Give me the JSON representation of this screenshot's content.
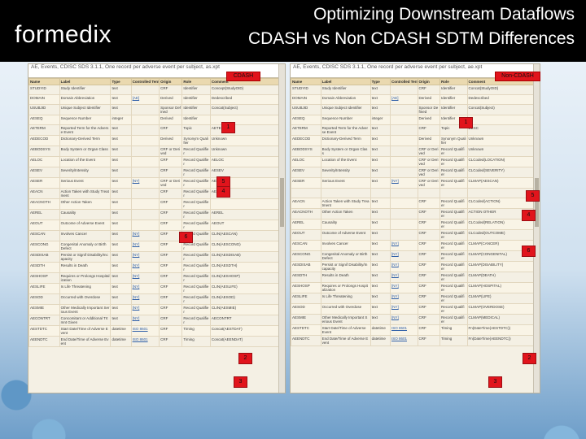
{
  "slide": {
    "logo": "formedix",
    "title_line1": "Optimizing Downstream Dataflows",
    "title_line2": "CDASH vs Non CDASH SDTM Differences"
  },
  "left_panel": {
    "label": "CDASH",
    "header_text": "AE, Events, CDISC SDS 3.1.1, One record per adverse event per subject, as.xpt",
    "columns": [
      "Name",
      "Label",
      "Type",
      "Controlled Terms",
      "Origin",
      "Role",
      "Comment"
    ],
    "rows": [
      [
        "STUDYID",
        "Study Identifier",
        "text",
        "",
        "CRF",
        "Identifier",
        "Concept(StudyOID)"
      ],
      [
        "DOMAIN",
        "Domain Abbreviation",
        "text",
        "[AE]",
        "Derived",
        "Identifier",
        "Dedescribed"
      ],
      [
        "USUBJID",
        "Unique Subject Identifier",
        "text",
        "",
        "Sponsor Defined",
        "Identifier",
        "Concat(Subject)"
      ],
      [
        "AESEQ",
        "Sequence Number",
        "integer",
        "",
        "Derived",
        "Identifier",
        ""
      ],
      [
        "AETERM",
        "Reported Term for the Adverse Event",
        "text",
        "",
        "CRF",
        "Topic",
        "AETERM"
      ],
      [
        "AEDECOD",
        "Dictionary-Derived Term",
        "text",
        "",
        "Derived",
        "Synonym Qualifier",
        "Unknown"
      ],
      [
        "AEBODSYS",
        "Body System or Organ Class",
        "text",
        "",
        "CRF or Derived",
        "Record Qualifier",
        "Unknown"
      ],
      [
        "AELOC",
        "Location of the Event",
        "text",
        "",
        "CRF",
        "Record Qualifier",
        "AELOC"
      ],
      [
        "AESEV",
        "Severity/Intensity",
        "text",
        "",
        "CRF",
        "Record Qualifier",
        "AESEV"
      ],
      [
        "AESER",
        "Serious Event",
        "text",
        "[NY]",
        "CRF or Derived",
        "Record Qualifier",
        "AESER"
      ],
      [
        "AEACN",
        "Action Taken with Study Treatment",
        "text",
        "",
        "CRF",
        "Record Qualifier",
        "AEACN"
      ],
      [
        "AEACNOTH",
        "Other Action Taken",
        "text",
        "",
        "CRF",
        "Record Qualifier",
        ""
      ],
      [
        "AEREL",
        "Causality",
        "text",
        "",
        "CRF",
        "Record Qualifier",
        "AEREL"
      ],
      [
        "AEOUT",
        "Outcome of Adverse Event",
        "text",
        "",
        "CRF",
        "Record Qualifier",
        "AEOUT"
      ],
      [
        "AESCAN",
        "Involves Cancer",
        "text",
        "[NY]",
        "CRF",
        "Record Qualifier",
        "CLIN(AESCAN)"
      ],
      [
        "AESCONG",
        "Congenital Anomaly or Birth Defect",
        "text",
        "[NY]",
        "CRF",
        "Record Qualifier",
        "CLIN(AESCONG)"
      ],
      [
        "AESDISAB",
        "Persist or Signif Disability/Incapacity",
        "text",
        "[NY]",
        "CRF",
        "Record Qualifier",
        "CLIN(AESDISAB)"
      ],
      [
        "AESDTH",
        "Results in Death",
        "text",
        "[NY]",
        "CRF",
        "Record Qualifier",
        "CLIN(AESDTH)"
      ],
      [
        "AESHOSP",
        "Requires or Prolongs Hospitalization",
        "text",
        "[NY]",
        "CRF",
        "Record Qualifier",
        "CLIN(AESHOSP)"
      ],
      [
        "AESLIFE",
        "Is Life Threatening",
        "text",
        "[NY]",
        "CRF",
        "Record Qualifier",
        "CLIN(AESLIFE)"
      ],
      [
        "AESOD",
        "Occurred with Overdose",
        "text",
        "[NY]",
        "CRF",
        "Record Qualifier",
        "CLIN(AESOD)"
      ],
      [
        "AESMIE",
        "Other Medically Important Serious Event",
        "text",
        "[NY]",
        "CRF",
        "Record Qualifier",
        "CLIN(AESMIE)"
      ],
      [
        "AECONTRT",
        "Concomitant or Additional Trtmnt Given",
        "text",
        "[NY]",
        "CRF",
        "Record Qualifier",
        "AECONTRT"
      ],
      [
        "AESTDTC",
        "Start Date/Time of Adverse Event",
        "datetime",
        "ISO 8601",
        "CRF",
        "Timing",
        "Concat(AESTDAT)"
      ],
      [
        "AEENDTC",
        "End Date/Time of Adverse Event",
        "datetime",
        "ISO 8601",
        "CRF",
        "Timing",
        "Concat(AEENDAT)"
      ]
    ]
  },
  "right_panel": {
    "label": "Non-CDASH",
    "header_text": "AE, Events, CDISC SDS 3.1.1, One record per adverse event per subject, ae.xpt",
    "columns": [
      "Name",
      "Label",
      "Type",
      "Controlled Terms",
      "Origin",
      "Role",
      "Comment"
    ],
    "rows": [
      [
        "STUDYID",
        "Study Identifier",
        "text",
        "",
        "CRF",
        "Identifier",
        "Concat(StudyOID)"
      ],
      [
        "DOMAIN",
        "Domain Abbreviation",
        "text",
        "[AE]",
        "Derived",
        "Identifier",
        "Dedescribed"
      ],
      [
        "USUBJID",
        "Unique Subject Identifier",
        "text",
        "",
        "Sponsor Defined",
        "Identifier",
        "Concat(Subject)"
      ],
      [
        "AESEQ",
        "Sequence Number",
        "integer",
        "",
        "Derived",
        "Identifier",
        ""
      ],
      [
        "AETERM",
        "Reported Term for the Adverse Event",
        "text",
        "",
        "CRF",
        "Topic",
        "DESC"
      ],
      [
        "AEDECOD",
        "Dictionary-Derived Term",
        "text",
        "",
        "Derived",
        "Synonym Qualifier",
        "Unknown"
      ],
      [
        "AEBODSYS",
        "Body System or Organ Class",
        "text",
        "",
        "CRF or Derived",
        "Record Qualifier",
        "Unknown"
      ],
      [
        "AELOC",
        "Location of the Event",
        "text",
        "",
        "CRF or Derived",
        "Record Qualifier",
        "CLCoded(LOCATION)"
      ],
      [
        "AESEV",
        "Severity/Intensity",
        "text",
        "",
        "CRF or Derived",
        "Record Qualifier",
        "CLCoded(SEVERITY)"
      ],
      [
        "AESER",
        "Serious Event",
        "text",
        "[NY]",
        "CRF or Derived",
        "Record Qualifier",
        "CLMAP(AESCAN)"
      ],
      [
        "",
        "",
        "",
        "",
        "",
        "",
        ""
      ],
      [
        "AEACN",
        "Action Taken with Study Treatment",
        "text",
        "",
        "CRF",
        "Record Qualifier",
        "CLCoded(ACTION)"
      ],
      [
        "AEACNOTH",
        "Other Action Taken",
        "text",
        "",
        "CRF",
        "Record Qualifier",
        "ACTION OTHER"
      ],
      [
        "AEREL",
        "Causality",
        "text",
        "",
        "CRF",
        "Record Qualifier",
        "CLCoded(RELATION)"
      ],
      [
        "AEOUT",
        "Outcome of Adverse Event",
        "text",
        "",
        "CRF",
        "Record Qualifier",
        "CLCoded(OUTCOME)"
      ],
      [
        "AESCAN",
        "Involves Cancer",
        "text",
        "[NY]",
        "CRF",
        "Record Qualifier",
        "CLMAP(CANCER)"
      ],
      [
        "AESCONG",
        "Congenital Anomaly or Birth Defect",
        "text",
        "[NY]",
        "CRF",
        "Record Qualifier",
        "CLMAP(CONGENITAL)"
      ],
      [
        "AESDISAB",
        "Persist or Signif Disability/Incapacity",
        "text",
        "[NY]",
        "CRF",
        "Record Qualifier",
        "CLMAP(DISABILITY)"
      ],
      [
        "AESDTH",
        "Results in Death",
        "text",
        "[NY]",
        "CRF",
        "Record Qualifier",
        "CLMAP(DEATH)"
      ],
      [
        "AESHOSP",
        "Requires or Prolongs Hospitalization",
        "text",
        "[NY]",
        "CRF",
        "Record Qualifier",
        "CLMAP(HOSPITAL)"
      ],
      [
        "AESLIFE",
        "Is Life Threatening",
        "text",
        "[NY]",
        "CRF",
        "Record Qualifier",
        "CLMAP(LIFE)"
      ],
      [
        "AESOD",
        "Occurred with Overdose",
        "text",
        "[NY]",
        "CRF",
        "Record Qualifier",
        "CLMAP(OVERDOSE)"
      ],
      [
        "AESMIE",
        "Other Medically Important Serious Event",
        "text",
        "[NY]",
        "CRF",
        "Record Qualifier",
        "CLMAP(MEDICAL)"
      ],
      [
        "AESTDTC",
        "Start Date/Time of Adverse Event",
        "datetime",
        "ISO 8601",
        "CRF",
        "Timing",
        "Fn(DateTime(AESTDTC))"
      ],
      [
        "AEENDTC",
        "End Date/Time of Adverse Event",
        "datetime",
        "ISO 8601",
        "CRF",
        "Timing",
        "Fn(DateTime(AEENDTC))"
      ]
    ]
  },
  "callouts": {
    "n1": "1",
    "n2": "2",
    "n3": "3",
    "n4": "4",
    "n5": "5",
    "n6": "6"
  }
}
